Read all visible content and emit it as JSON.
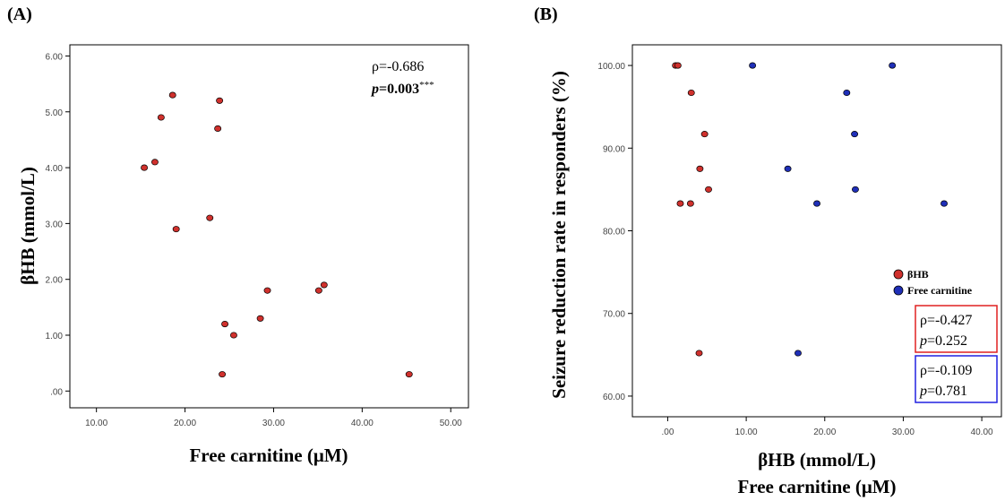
{
  "chart_data": [
    {
      "type": "scatter",
      "panel_label": "(A)",
      "xlabel": "Free carnitine (μM)",
      "ylabel": "βHB (mmol/L)",
      "xlim": [
        7,
        52
      ],
      "ylim": [
        -0.3,
        6.2
      ],
      "x_ticks": [
        10,
        20,
        30,
        40,
        50
      ],
      "x_tick_labels": [
        "10.00",
        "20.00",
        "30.00",
        "40.00",
        "50.00"
      ],
      "y_ticks": [
        0,
        1,
        2,
        3,
        4,
        5,
        6
      ],
      "y_tick_labels": [
        ".00",
        "1.00",
        "2.00",
        "3.00",
        "4.00",
        "5.00",
        "6.00"
      ],
      "grid": false,
      "series": [
        {
          "color": "#d0312d",
          "points": [
            [
              15.4,
              4.0
            ],
            [
              16.6,
              4.1
            ],
            [
              17.3,
              4.9
            ],
            [
              18.6,
              5.3
            ],
            [
              19.0,
              2.9
            ],
            [
              22.8,
              3.1
            ],
            [
              23.7,
              4.7
            ],
            [
              23.9,
              5.2
            ],
            [
              24.2,
              0.3
            ],
            [
              24.5,
              1.2
            ],
            [
              25.5,
              1.0
            ],
            [
              28.5,
              1.3
            ],
            [
              29.3,
              1.8
            ],
            [
              35.1,
              1.8
            ],
            [
              35.7,
              1.9
            ],
            [
              45.3,
              0.3
            ]
          ]
        }
      ],
      "annotations": {
        "rho": "ρ=-0.686",
        "p_label": "p",
        "p_value": "=0.003",
        "p_stars": "***"
      }
    },
    {
      "type": "scatter",
      "panel_label": "(B)",
      "xlabel": "βHB (mmol/L)",
      "xlabel2": "Free carnitine (μM)",
      "ylabel": "Seizure reduction rate in responders (%)",
      "xlim": [
        -4.5,
        42.5
      ],
      "ylim": [
        57.5,
        102.5
      ],
      "x_ticks": [
        0,
        10,
        20,
        30,
        40
      ],
      "x_tick_labels": [
        ".00",
        "10.00",
        "20.00",
        "30.00",
        "40.00"
      ],
      "y_ticks": [
        60,
        70,
        80,
        90,
        100
      ],
      "y_tick_labels": [
        "60.00",
        "70.00",
        "80.00",
        "90.00",
        "100.00"
      ],
      "grid": false,
      "legend_position": "right",
      "series": [
        {
          "name": "βHB",
          "color": "#d0312d",
          "points": [
            [
              1.0,
              100.0
            ],
            [
              1.3,
              100.0
            ],
            [
              1.6,
              83.3
            ],
            [
              3.0,
              96.7
            ],
            [
              2.9,
              83.3
            ],
            [
              4.1,
              87.5
            ],
            [
              4.7,
              91.7
            ],
            [
              5.2,
              85.0
            ],
            [
              4.0,
              65.2
            ]
          ]
        },
        {
          "name": "Free carnitine",
          "color": "#1f2fb8",
          "points": [
            [
              10.8,
              100.0
            ],
            [
              28.6,
              100.0
            ],
            [
              22.8,
              96.7
            ],
            [
              23.8,
              91.7
            ],
            [
              15.3,
              87.5
            ],
            [
              23.9,
              85.0
            ],
            [
              19.0,
              83.3
            ],
            [
              35.2,
              83.3
            ],
            [
              16.6,
              65.2
            ]
          ]
        }
      ],
      "stats": [
        {
          "rho": "ρ=-0.427",
          "p_label": "p",
          "p_value": "=0.252",
          "box_color": "#e02020"
        },
        {
          "rho": "ρ=-0.109",
          "p_label": "p",
          "p_value": "=0.781",
          "box_color": "#2020e0"
        }
      ]
    }
  ]
}
